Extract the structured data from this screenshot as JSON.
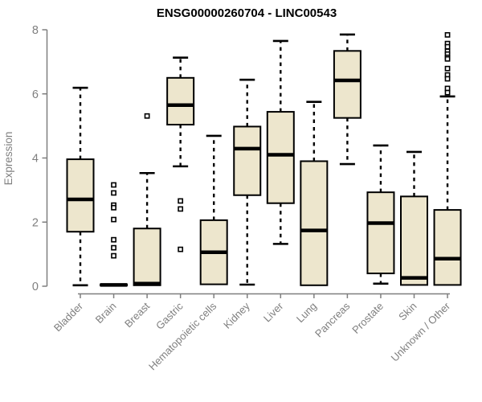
{
  "title": "ENSG00000260704 - LINC00543",
  "colors": {
    "box_fill": "#EDE6CD",
    "box_border": "#000000",
    "median": "#000000",
    "whisker": "#000000",
    "axis": "#7F7F7F",
    "tick_label": "#7F7F7F",
    "title": "#000000",
    "background": "#FFFFFF",
    "outlier_fill": "#FFFFFF"
  },
  "chart_data": {
    "type": "boxplot",
    "title": "ENSG00000260704 - LINC00543",
    "xlabel": "",
    "ylabel": "Expression",
    "ylim": [
      0,
      8
    ],
    "yticks": [
      0,
      2,
      4,
      6,
      8
    ],
    "grid": false,
    "legend": "none",
    "categories": [
      "Bladder",
      "Brain",
      "Breast",
      "Gastric",
      "Hematopoietic cells",
      "Kidney",
      "Liver",
      "Lung",
      "Pancreas",
      "Prostate",
      "Skin",
      "Unknown / Other"
    ],
    "boxes": [
      {
        "category": "Bladder",
        "min": 0.03,
        "q1": 1.7,
        "median": 2.71,
        "q3": 3.96,
        "max": 6.19,
        "outliers": []
      },
      {
        "category": "Brain",
        "min": 0.02,
        "q1": 0.02,
        "median": 0.04,
        "q3": 0.06,
        "max": 0.06,
        "outliers": [
          3.16,
          2.91,
          2.53,
          2.45,
          2.08,
          1.45,
          1.2,
          0.95
        ]
      },
      {
        "category": "Breast",
        "min": 0.0,
        "q1": 0.03,
        "median": 0.08,
        "q3": 1.8,
        "max": 3.53,
        "outliers": [
          5.31
        ]
      },
      {
        "category": "Gastric",
        "min": 3.74,
        "q1": 5.04,
        "median": 5.65,
        "q3": 6.5,
        "max": 7.13,
        "outliers": [
          2.66,
          2.41,
          1.15
        ]
      },
      {
        "category": "Hematopoietic cells",
        "min": 0.04,
        "q1": 0.06,
        "median": 1.06,
        "q3": 2.06,
        "max": 4.69,
        "outliers": []
      },
      {
        "category": "Kidney",
        "min": 0.05,
        "q1": 2.84,
        "median": 4.29,
        "q3": 4.98,
        "max": 6.44,
        "outliers": []
      },
      {
        "category": "Liver",
        "min": 1.32,
        "q1": 2.59,
        "median": 4.1,
        "q3": 5.44,
        "max": 7.65,
        "outliers": []
      },
      {
        "category": "Lung",
        "min": 0.02,
        "q1": 0.03,
        "median": 1.74,
        "q3": 3.9,
        "max": 5.75,
        "outliers": []
      },
      {
        "category": "Pancreas",
        "min": 3.81,
        "q1": 5.25,
        "median": 6.42,
        "q3": 7.34,
        "max": 7.85,
        "outliers": []
      },
      {
        "category": "Prostate",
        "min": 0.08,
        "q1": 0.4,
        "median": 1.97,
        "q3": 2.93,
        "max": 4.39,
        "outliers": []
      },
      {
        "category": "Skin",
        "min": 0.02,
        "q1": 0.04,
        "median": 0.26,
        "q3": 2.8,
        "max": 4.19,
        "outliers": []
      },
      {
        "category": "Unknown / Other",
        "min": 0.02,
        "q1": 0.04,
        "median": 0.86,
        "q3": 2.38,
        "max": 5.92,
        "outliers": [
          7.84,
          7.57,
          7.47,
          7.33,
          7.24,
          7.14,
          7.09,
          6.79,
          6.59,
          6.47,
          6.17,
          6.04
        ]
      }
    ]
  }
}
